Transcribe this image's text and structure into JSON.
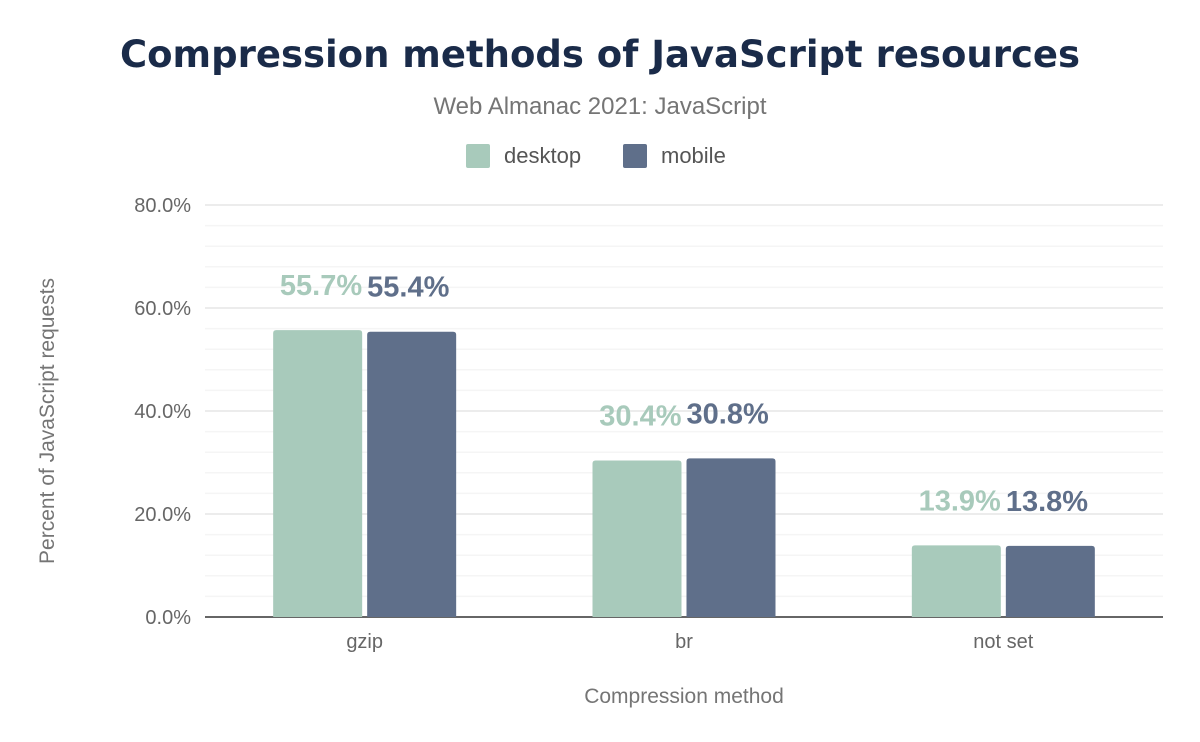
{
  "chart_data": {
    "type": "bar",
    "title": "Compression methods of JavaScript resources",
    "subtitle": "Web Almanac 2021: JavaScript",
    "xlabel": "Compression method",
    "ylabel": "Percent of JavaScript requests",
    "categories": [
      "gzip",
      "br",
      "not set"
    ],
    "series": [
      {
        "name": "desktop",
        "color": "#a8cabb",
        "values": [
          55.7,
          30.4,
          13.9
        ],
        "labels": [
          "55.7%",
          "30.4%",
          "13.9%"
        ]
      },
      {
        "name": "mobile",
        "color": "#5f6f8a",
        "values": [
          55.4,
          30.8,
          13.8
        ],
        "labels": [
          "55.4%",
          "30.8%",
          "13.8%"
        ]
      }
    ],
    "ylim": [
      0,
      80
    ],
    "yticks": [
      0,
      20,
      40,
      60,
      80
    ],
    "ytick_labels": [
      "0.0%",
      "20.0%",
      "40.0%",
      "60.0%",
      "80.0%"
    ],
    "grid": true,
    "legend_position": "top-center"
  }
}
